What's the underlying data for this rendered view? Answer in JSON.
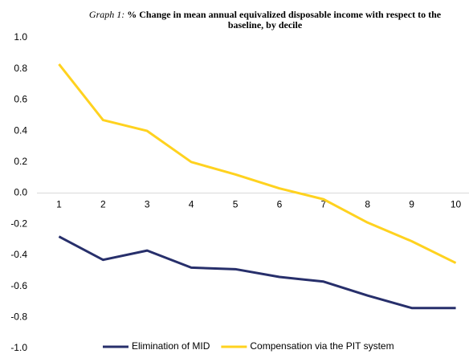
{
  "chart_data": {
    "type": "line",
    "title_label": "Graph 1:",
    "title": "% Change in mean annual equivalized disposable income with respect to the baseline, by decile",
    "categories": [
      "1",
      "2",
      "3",
      "4",
      "5",
      "6",
      "7",
      "8",
      "9",
      "10"
    ],
    "series": [
      {
        "name": "Elimination of MID",
        "color": "#272f6b",
        "values": [
          -0.28,
          -0.43,
          -0.37,
          -0.48,
          -0.49,
          -0.54,
          -0.57,
          -0.66,
          -0.74,
          -0.74
        ]
      },
      {
        "name": "Compensation via the PIT system",
        "color": "#ffd21f",
        "values": [
          0.83,
          0.47,
          0.4,
          0.2,
          0.12,
          0.03,
          -0.04,
          -0.19,
          -0.31,
          -0.45
        ]
      }
    ],
    "ylim": [
      -1,
      1
    ],
    "yticks": [
      {
        "value": -1,
        "label": "-1.0"
      },
      -0.8,
      -0.6,
      -0.4,
      -0.2,
      {
        "value": 0,
        "label": "0.0"
      },
      0.2,
      0.4,
      0.6,
      0.8,
      {
        "value": 1,
        "label": "1.0"
      }
    ],
    "grid": false,
    "legend": "bottom"
  }
}
